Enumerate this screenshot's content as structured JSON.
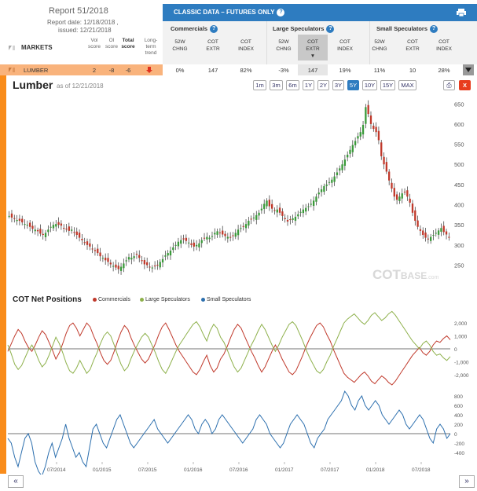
{
  "report": {
    "title": "Report 51/2018",
    "date": "Report date: 12/18/2018 ,",
    "issued": "issued: 12/21/2018",
    "markets_label": "MARKETS",
    "score_headers": [
      {
        "label": "Vol\nscore"
      },
      {
        "label": "OI\nscore"
      },
      {
        "label": "Total\nscore"
      },
      {
        "label": "Long-\nterm\ntrend"
      }
    ]
  },
  "header": {
    "title": "CLASSIC DATA – FUTURES ONLY",
    "groups": [
      {
        "name": "Commercials",
        "cols": [
          "52W\nCHNG",
          "COT\nEXTR",
          "COT\nINDEX"
        ]
      },
      {
        "name": "Large Speculators",
        "cols": [
          "52W\nCHNG",
          "COT\nEXTR",
          "COT\nINDEX"
        ]
      },
      {
        "name": "Small Speculators",
        "cols": [
          "52W\nCHNG",
          "COT\nEXTR",
          "COT\nINDEX"
        ]
      }
    ],
    "active_col": "COT EXTR (Large Speculators)"
  },
  "row": {
    "market": "LUMBER",
    "vol_score": "2",
    "oi_score": "-8",
    "total_score": "-6",
    "trend": "down",
    "values": [
      "0%",
      "147",
      "82%",
      "-3%",
      "147",
      "19%",
      "11%",
      "10",
      "28%"
    ]
  },
  "chart_header": {
    "title": "Lumber",
    "as_of": "as of 12/21/2018",
    "ranges": [
      "1m",
      "3m",
      "6m",
      "1Y",
      "2Y",
      "3Y",
      "5Y",
      "10Y",
      "15Y",
      "MAX"
    ],
    "active_range": "5Y",
    "print_label": "⎙",
    "close_label": "X"
  },
  "cot_title": "COT Net Positions",
  "legend": [
    {
      "label": "Commercials",
      "color": "#c0392b"
    },
    {
      "label": "Large Speculators",
      "color": "#8db04a"
    },
    {
      "label": "Small Speculators",
      "color": "#2c6fae"
    }
  ],
  "watermark": {
    "main": "COT",
    "sub": "BASE",
    "suffix": ".com"
  },
  "footer": {
    "left": "«",
    "right": "»"
  },
  "chart_data": [
    {
      "type": "candlestick",
      "title": "Lumber",
      "ylim": [
        210,
        670
      ],
      "yticks": [
        250,
        300,
        350,
        400,
        450,
        500,
        550,
        600,
        650
      ],
      "x_start": "2013-12",
      "x_end": "2018-12",
      "close": [
        372,
        368,
        365,
        362,
        360,
        356,
        352,
        350,
        345,
        340,
        338,
        334,
        328,
        325,
        330,
        338,
        345,
        350,
        352,
        350,
        348,
        342,
        340,
        335,
        338,
        332,
        325,
        318,
        312,
        305,
        300,
        296,
        290,
        285,
        280,
        272,
        268,
        262,
        258,
        252,
        248,
        244,
        240,
        246,
        254,
        262,
        270,
        268,
        272,
        276,
        268,
        260,
        252,
        250,
        246,
        244,
        248,
        250,
        258,
        265,
        274,
        280,
        286,
        294,
        300,
        308,
        312,
        314,
        310,
        306,
        300,
        296,
        300,
        304,
        312,
        316,
        320,
        318,
        322,
        330,
        334,
        330,
        326,
        322,
        320,
        318,
        322,
        330,
        338,
        342,
        346,
        352,
        360,
        364,
        368,
        374,
        380,
        390,
        402,
        410,
        396,
        390,
        385,
        388,
        380,
        372,
        364,
        358,
        362,
        366,
        370,
        376,
        382,
        388,
        392,
        396,
        402,
        410,
        420,
        430,
        438,
        446,
        450,
        456,
        462,
        470,
        480,
        490,
        500,
        512,
        524,
        536,
        548,
        558,
        570,
        580,
        598,
        642,
        625,
        600,
        588,
        580,
        560,
        520,
        500,
        482,
        460,
        440,
        420,
        412,
        420,
        428,
        432,
        420,
        405,
        380,
        360,
        345,
        335,
        325,
        318,
        315,
        320,
        325,
        330,
        336,
        342,
        332,
        326,
        318
      ]
    },
    {
      "type": "line",
      "title": "COT Net Positions",
      "ylim": [
        -2800,
        2800
      ],
      "yticks": [
        2000,
        1000,
        0,
        -1000,
        -2000
      ],
      "series": [
        {
          "name": "Commercials",
          "color": "#c0392b",
          "values": [
            -200,
            400,
            1000,
            1500,
            1200,
            600,
            100,
            -200,
            300,
            900,
            1400,
            1100,
            500,
            -100,
            -800,
            -300,
            400,
            1200,
            1800,
            2000,
            1600,
            1000,
            1500,
            2000,
            1700,
            1000,
            400,
            -300,
            -900,
            -1200,
            -900,
            -200,
            600,
            1300,
            1800,
            1500,
            800,
            200,
            -300,
            -800,
            -1100,
            -800,
            -200,
            400,
            1100,
            1700,
            2000,
            1500,
            900,
            300,
            -200,
            -600,
            -1000,
            -1400,
            -1800,
            -2000,
            -1600,
            -1000,
            -500,
            -1300,
            -1800,
            -1500,
            -800,
            -400,
            200,
            900,
            1500,
            1900,
            1600,
            1000,
            400,
            -200,
            -700,
            -1300,
            -1800,
            -1400,
            -800,
            -200,
            300,
            -200,
            -800,
            -1300,
            -1800,
            -2000,
            -1700,
            -1100,
            -500,
            200,
            800,
            1300,
            1800,
            2000,
            1700,
            1100,
            600,
            -100,
            -700,
            -1300,
            -1900,
            -2200,
            -2400,
            -2600,
            -2300,
            -2000,
            -1800,
            -2100,
            -2500,
            -2700,
            -2400,
            -2100,
            -2300,
            -2600,
            -2800,
            -2500,
            -2100,
            -1700,
            -1300,
            -900,
            -500,
            -200,
            100,
            -300,
            -500,
            -200,
            300,
            600,
            500,
            800,
            1000,
            700
          ]
        },
        {
          "name": "Large Speculators",
          "color": "#8db04a",
          "values": [
            300,
            -400,
            -1200,
            -1600,
            -1300,
            -700,
            -100,
            300,
            -200,
            -900,
            -1400,
            -1100,
            -500,
            200,
            900,
            400,
            -300,
            -1100,
            -1700,
            -1900,
            -1500,
            -900,
            -1400,
            -1900,
            -1600,
            -900,
            -300,
            400,
            1000,
            1300,
            1000,
            300,
            -500,
            -1200,
            -1700,
            -1400,
            -700,
            -100,
            400,
            900,
            1200,
            900,
            300,
            -300,
            -1000,
            -1600,
            -1900,
            -1400,
            -800,
            -200,
            300,
            700,
            1100,
            1500,
            1900,
            2100,
            1700,
            1100,
            600,
            1400,
            1900,
            1600,
            900,
            500,
            -100,
            -800,
            -1400,
            -1800,
            -1500,
            -900,
            -300,
            300,
            800,
            1400,
            1900,
            1500,
            900,
            300,
            -200,
            300,
            900,
            1400,
            1900,
            2100,
            1800,
            1200,
            600,
            -100,
            -700,
            -1200,
            -1700,
            -1900,
            -1600,
            -1000,
            -500,
            200,
            800,
            1400,
            2000,
            2300,
            2500,
            2700,
            2400,
            2100,
            1900,
            2200,
            2600,
            2800,
            2500,
            2200,
            2400,
            2700,
            2900,
            2600,
            2200,
            1800,
            1400,
            1000,
            600,
            300,
            0,
            400,
            600,
            300,
            -200,
            -500,
            -400,
            -700,
            -900,
            -600
          ]
        },
        {
          "name": "Small Speculators",
          "color": "#2c6fae",
          "values": [
            -100,
            -200,
            -500,
            -700,
            -400,
            -100,
            0,
            -200,
            -600,
            -800,
            -900,
            -700,
            -400,
            -200,
            -500,
            -300,
            -100,
            200,
            -100,
            -300,
            -500,
            -400,
            -600,
            -700,
            -300,
            100,
            200,
            0,
            -200,
            -300,
            -100,
            100,
            300,
            400,
            200,
            0,
            -200,
            -300,
            -200,
            -100,
            0,
            100,
            200,
            300,
            100,
            0,
            -100,
            -200,
            -100,
            0,
            100,
            200,
            300,
            400,
            300,
            100,
            0,
            200,
            300,
            200,
            0,
            100,
            300,
            400,
            300,
            200,
            100,
            0,
            -100,
            -200,
            -100,
            0,
            100,
            300,
            400,
            300,
            200,
            0,
            -100,
            -200,
            -300,
            -200,
            0,
            200,
            300,
            400,
            300,
            200,
            0,
            -200,
            -300,
            -100,
            0,
            100,
            300,
            400,
            500,
            600,
            700,
            900,
            800,
            600,
            500,
            700,
            800,
            600,
            500,
            600,
            700,
            600,
            400,
            300,
            200,
            300,
            400,
            500,
            400,
            200,
            100,
            200,
            300,
            400,
            300,
            100,
            -100,
            -200,
            100,
            200,
            100,
            -100,
            0
          ]
        }
      ]
    }
  ],
  "x_axis": [
    "07/2014",
    "01/2015",
    "07/2015",
    "01/2016",
    "07/2016",
    "01/2017",
    "07/2017",
    "01/2018",
    "07/2018"
  ],
  "small_spec_axis": {
    "ylim": [
      -600,
      900
    ],
    "yticks": [
      800,
      600,
      400,
      200,
      0,
      -200,
      -400
    ]
  }
}
